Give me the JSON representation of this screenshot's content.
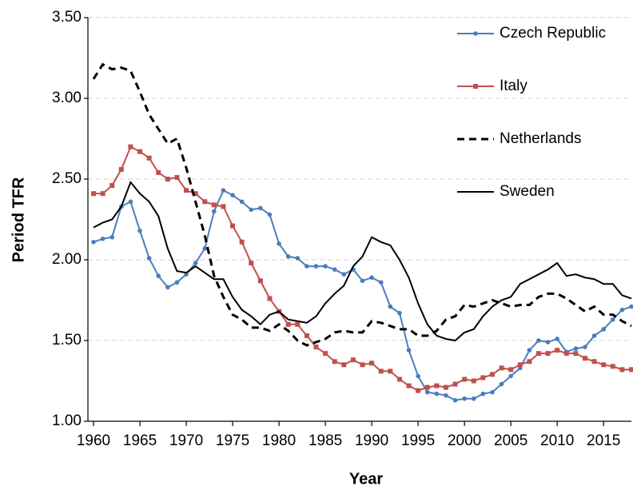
{
  "chart_data": {
    "type": "line",
    "x_label": "Year",
    "y_label": "Period TFR",
    "x": [
      1960,
      1961,
      1962,
      1963,
      1964,
      1965,
      1966,
      1967,
      1968,
      1969,
      1970,
      1971,
      1972,
      1973,
      1974,
      1975,
      1976,
      1977,
      1978,
      1979,
      1980,
      1981,
      1982,
      1983,
      1984,
      1985,
      1986,
      1987,
      1988,
      1989,
      1990,
      1991,
      1992,
      1993,
      1994,
      1995,
      1996,
      1997,
      1998,
      1999,
      2000,
      2001,
      2002,
      2003,
      2004,
      2005,
      2006,
      2007,
      2008,
      2009,
      2010,
      2011,
      2012,
      2013,
      2014,
      2015,
      2016,
      2017,
      2018
    ],
    "series": [
      {
        "name": "Czech Republic",
        "color": "#4a7ebb",
        "marker": "circle",
        "dash": false,
        "values": [
          2.11,
          2.13,
          2.14,
          2.33,
          2.36,
          2.18,
          2.01,
          1.9,
          1.83,
          1.86,
          1.91,
          1.98,
          2.07,
          2.3,
          2.43,
          2.4,
          2.36,
          2.31,
          2.32,
          2.28,
          2.1,
          2.02,
          2.01,
          1.96,
          1.96,
          1.96,
          1.94,
          1.91,
          1.94,
          1.87,
          1.89,
          1.86,
          1.71,
          1.67,
          1.44,
          1.28,
          1.18,
          1.17,
          1.16,
          1.13,
          1.14,
          1.14,
          1.17,
          1.18,
          1.23,
          1.28,
          1.33,
          1.44,
          1.5,
          1.49,
          1.51,
          1.43,
          1.45,
          1.46,
          1.53,
          1.57,
          1.63,
          1.69,
          1.71
        ]
      },
      {
        "name": "Italy",
        "color": "#c0504d",
        "marker": "square",
        "dash": false,
        "values": [
          2.41,
          2.41,
          2.46,
          2.56,
          2.7,
          2.67,
          2.63,
          2.54,
          2.5,
          2.51,
          2.43,
          2.41,
          2.36,
          2.34,
          2.33,
          2.21,
          2.11,
          1.98,
          1.87,
          1.76,
          1.68,
          1.6,
          1.6,
          1.53,
          1.46,
          1.42,
          1.37,
          1.35,
          1.38,
          1.35,
          1.36,
          1.31,
          1.31,
          1.26,
          1.22,
          1.19,
          1.21,
          1.22,
          1.21,
          1.23,
          1.26,
          1.25,
          1.27,
          1.29,
          1.33,
          1.32,
          1.35,
          1.37,
          1.42,
          1.42,
          1.44,
          1.42,
          1.42,
          1.39,
          1.37,
          1.35,
          1.34,
          1.32,
          1.32
        ]
      },
      {
        "name": "Netherlands",
        "color": "#000000",
        "marker": "none",
        "dash": true,
        "values": [
          3.12,
          3.21,
          3.18,
          3.19,
          3.17,
          3.04,
          2.9,
          2.81,
          2.72,
          2.75,
          2.57,
          2.36,
          2.15,
          1.9,
          1.77,
          1.66,
          1.63,
          1.58,
          1.58,
          1.56,
          1.6,
          1.56,
          1.5,
          1.47,
          1.49,
          1.51,
          1.55,
          1.56,
          1.55,
          1.55,
          1.62,
          1.61,
          1.59,
          1.57,
          1.57,
          1.53,
          1.53,
          1.56,
          1.63,
          1.65,
          1.72,
          1.71,
          1.73,
          1.75,
          1.73,
          1.71,
          1.72,
          1.72,
          1.77,
          1.79,
          1.79,
          1.76,
          1.72,
          1.68,
          1.71,
          1.66,
          1.66,
          1.62,
          1.59
        ]
      },
      {
        "name": "Sweden",
        "color": "#000000",
        "marker": "none",
        "dash": false,
        "values": [
          2.2,
          2.23,
          2.25,
          2.33,
          2.48,
          2.41,
          2.36,
          2.27,
          2.07,
          1.93,
          1.92,
          1.96,
          1.92,
          1.88,
          1.88,
          1.77,
          1.69,
          1.65,
          1.6,
          1.66,
          1.68,
          1.63,
          1.62,
          1.61,
          1.65,
          1.73,
          1.79,
          1.84,
          1.96,
          2.02,
          2.14,
          2.11,
          2.09,
          2.0,
          1.89,
          1.73,
          1.6,
          1.53,
          1.51,
          1.5,
          1.55,
          1.57,
          1.65,
          1.71,
          1.75,
          1.77,
          1.85,
          1.88,
          1.91,
          1.94,
          1.98,
          1.9,
          1.91,
          1.89,
          1.88,
          1.85,
          1.85,
          1.78,
          1.76
        ]
      }
    ],
    "xlim": [
      1960,
      2018
    ],
    "xticks": [
      1960,
      1965,
      1970,
      1975,
      1980,
      1985,
      1990,
      1995,
      2000,
      2005,
      2010,
      2015
    ],
    "ylim": [
      1,
      3.5
    ],
    "yticks": [
      {
        "value": 1,
        "label": "1.00"
      },
      {
        "value": 1.5,
        "label": "1.50"
      },
      {
        "value": 2,
        "label": "2.00"
      },
      {
        "value": 2.5,
        "label": "2.50"
      },
      {
        "value": 3,
        "label": "3.00"
      },
      {
        "value": 3.5,
        "label": "3.50"
      }
    ],
    "grid": true,
    "legend": "upper right"
  }
}
